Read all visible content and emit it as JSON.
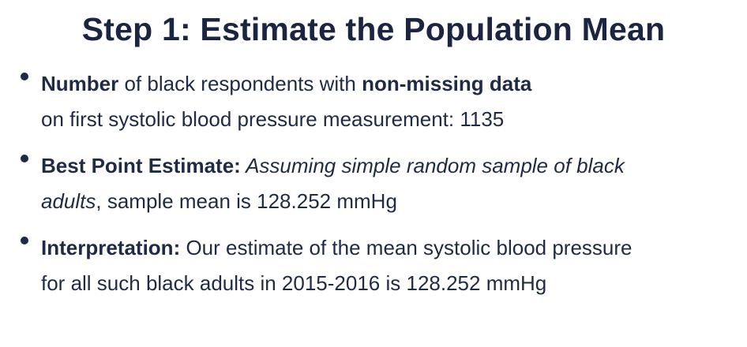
{
  "slide": {
    "title": "Step 1: Estimate the Population Mean",
    "bullets": [
      {
        "line1_bold1": "Number",
        "line1_text1": " of black respondents with ",
        "line1_bold2": "non-missing data",
        "line2_text": "on first systolic blood pressure measurement: 1135"
      },
      {
        "label": "Best Point Estimate:",
        "italic1": " Assuming simple random sample of black",
        "italic2": "adults",
        "text2": ", sample mean is 128.252 mmHg"
      },
      {
        "label": "Interpretation:",
        "text1": " Our estimate of the mean systolic blood pressure",
        "text2": "for all such black adults in 2015-2016 is 128.252 mmHg"
      }
    ]
  }
}
